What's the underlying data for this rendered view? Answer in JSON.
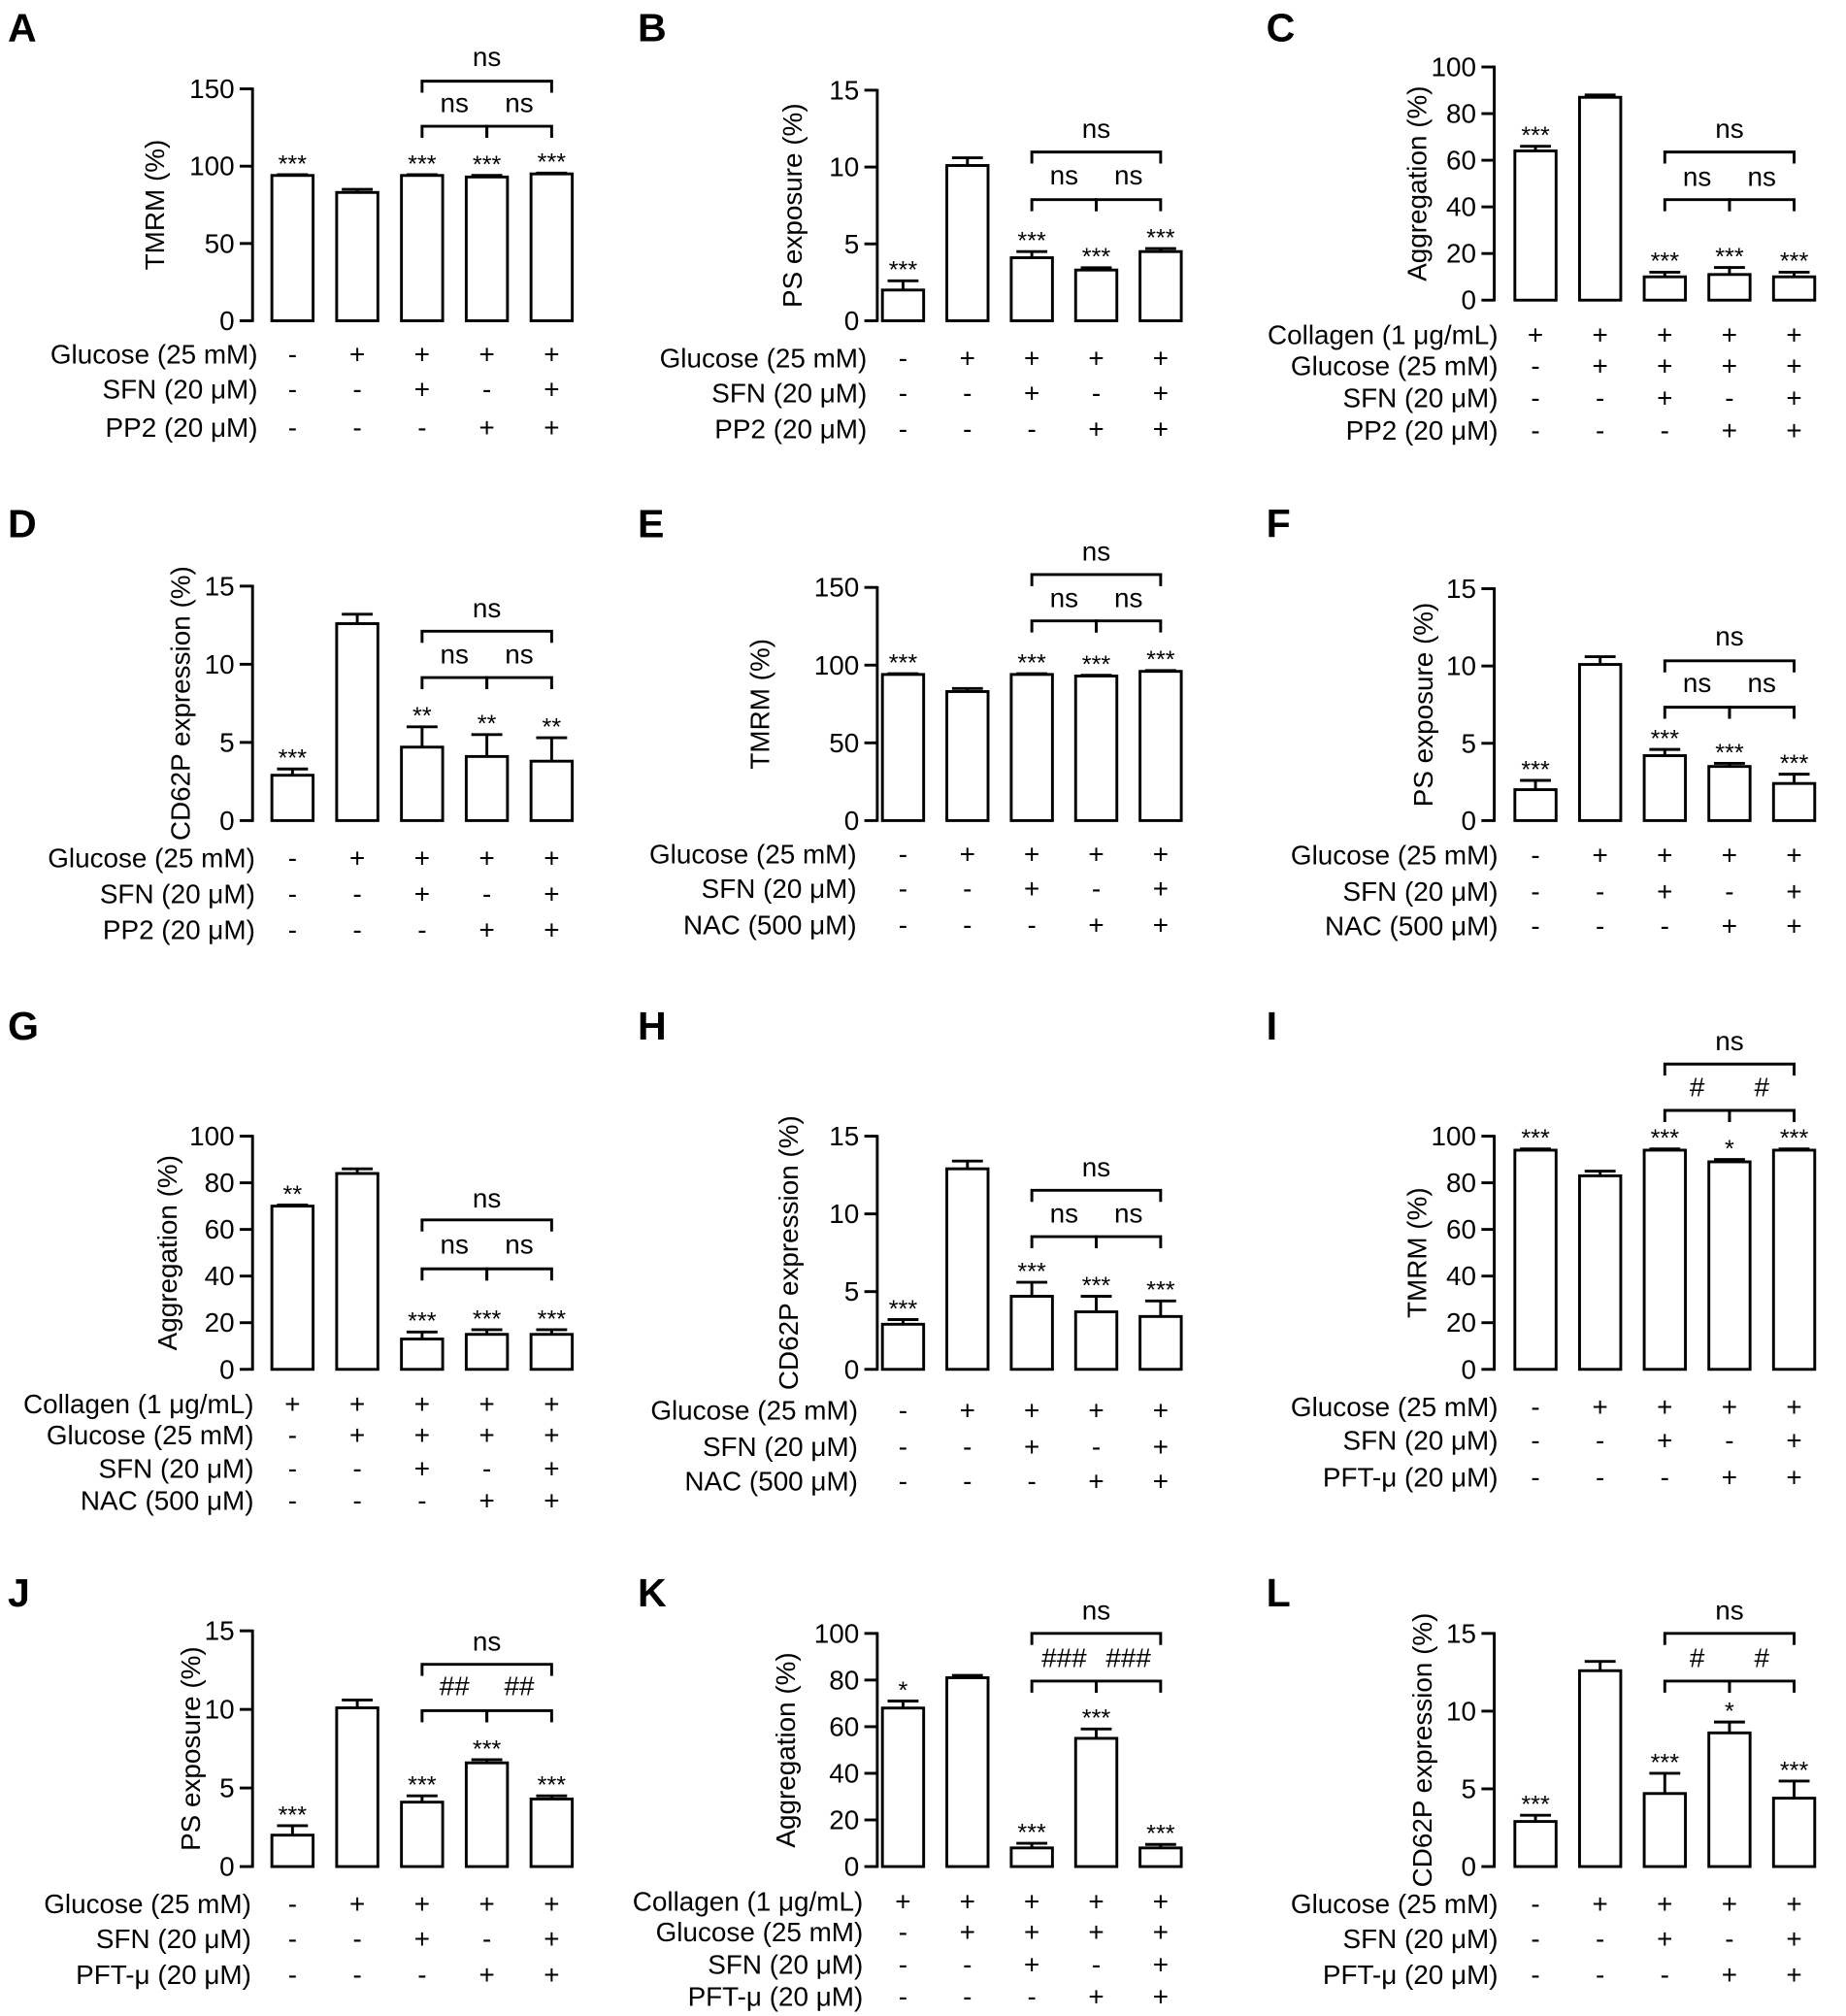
{
  "colors": {
    "bar_fill": "#ffffff",
    "stroke": "#000000"
  },
  "chart_data": [
    {
      "panel": "A",
      "type": "bar",
      "ylabel": "TMRM (%)",
      "ylim": [
        0,
        150
      ],
      "yticks": [
        0,
        50,
        100,
        150
      ],
      "values": [
        94,
        83,
        94,
        93,
        95
      ],
      "errors": [
        0.5,
        2,
        0.5,
        1,
        0.5
      ],
      "significance": [
        "***",
        null,
        "***",
        "***",
        "***"
      ],
      "comparisons": [
        {
          "groups": [
            2,
            3
          ],
          "label": "ns"
        },
        {
          "groups": [
            3,
            4
          ],
          "label": "ns"
        },
        {
          "groups": [
            2,
            4
          ],
          "label": "ns"
        }
      ],
      "conditions": [
        {
          "label": "Glucose (25 mM)",
          "signs": [
            "-",
            "+",
            "+",
            "+",
            "+"
          ]
        },
        {
          "label": "SFN (20 μM)",
          "signs": [
            "-",
            "-",
            "+",
            "-",
            "+"
          ]
        },
        {
          "label": "PP2 (20 μM)",
          "signs": [
            "-",
            "-",
            "-",
            "+",
            "+"
          ]
        }
      ]
    },
    {
      "panel": "B",
      "type": "bar",
      "ylabel": "PS exposure (%)",
      "ylim": [
        0,
        15
      ],
      "yticks": [
        0,
        5,
        10,
        15
      ],
      "values": [
        2.0,
        10.1,
        4.1,
        3.3,
        4.5
      ],
      "errors": [
        0.6,
        0.5,
        0.4,
        0.15,
        0.2
      ],
      "significance": [
        "***",
        null,
        "***",
        "***",
        "***"
      ],
      "comparisons": [
        {
          "groups": [
            2,
            3
          ],
          "label": "ns"
        },
        {
          "groups": [
            3,
            4
          ],
          "label": "ns"
        },
        {
          "groups": [
            2,
            4
          ],
          "label": "ns"
        }
      ],
      "conditions": [
        {
          "label": "Glucose (25 mM)",
          "signs": [
            "-",
            "+",
            "+",
            "+",
            "+"
          ]
        },
        {
          "label": "SFN (20 μM)",
          "signs": [
            "-",
            "-",
            "+",
            "-",
            "+"
          ]
        },
        {
          "label": "PP2 (20 μM)",
          "signs": [
            "-",
            "-",
            "-",
            "+",
            "+"
          ]
        }
      ]
    },
    {
      "panel": "C",
      "type": "bar",
      "ylabel": "Aggregation (%)",
      "ylim": [
        0,
        100
      ],
      "yticks": [
        0,
        20,
        40,
        60,
        80,
        100
      ],
      "values": [
        64,
        87,
        10,
        11,
        10
      ],
      "errors": [
        2,
        1,
        2,
        3,
        2
      ],
      "significance": [
        "***",
        null,
        "***",
        "***",
        "***"
      ],
      "comparisons": [
        {
          "groups": [
            2,
            3
          ],
          "label": "ns"
        },
        {
          "groups": [
            3,
            4
          ],
          "label": "ns"
        },
        {
          "groups": [
            2,
            4
          ],
          "label": "ns"
        }
      ],
      "conditions": [
        {
          "label": "Collagen (1 μg/mL)",
          "signs": [
            "+",
            "+",
            "+",
            "+",
            "+"
          ]
        },
        {
          "label": "Glucose (25 mM)",
          "signs": [
            "-",
            "+",
            "+",
            "+",
            "+"
          ]
        },
        {
          "label": "SFN (20 μM)",
          "signs": [
            "-",
            "-",
            "+",
            "-",
            "+"
          ]
        },
        {
          "label": "PP2 (20 μM)",
          "signs": [
            "-",
            "-",
            "-",
            "+",
            "+"
          ]
        }
      ]
    },
    {
      "panel": "D",
      "type": "bar",
      "ylabel": "CD62P expression (%)",
      "ylim": [
        0,
        15
      ],
      "yticks": [
        0,
        5,
        10,
        15
      ],
      "values": [
        2.9,
        12.6,
        4.7,
        4.1,
        3.8
      ],
      "errors": [
        0.4,
        0.6,
        1.3,
        1.4,
        1.5
      ],
      "significance": [
        "***",
        null,
        "**",
        "**",
        "**"
      ],
      "comparisons": [
        {
          "groups": [
            2,
            3
          ],
          "label": "ns"
        },
        {
          "groups": [
            3,
            4
          ],
          "label": "ns"
        },
        {
          "groups": [
            2,
            4
          ],
          "label": "ns"
        }
      ],
      "conditions": [
        {
          "label": "Glucose (25 mM)",
          "signs": [
            "-",
            "+",
            "+",
            "+",
            "+"
          ]
        },
        {
          "label": "SFN (20 μM)",
          "signs": [
            "-",
            "-",
            "+",
            "-",
            "+"
          ]
        },
        {
          "label": "PP2 (20 μM)",
          "signs": [
            "-",
            "-",
            "-",
            "+",
            "+"
          ]
        }
      ]
    },
    {
      "panel": "E",
      "type": "bar",
      "ylabel": "TMRM (%)",
      "ylim": [
        0,
        150
      ],
      "yticks": [
        0,
        50,
        100,
        150
      ],
      "values": [
        94,
        83,
        94,
        93,
        96
      ],
      "errors": [
        0.5,
        2,
        0.5,
        0.5,
        0.5
      ],
      "significance": [
        "***",
        null,
        "***",
        "***",
        "***"
      ],
      "comparisons": [
        {
          "groups": [
            2,
            3
          ],
          "label": "ns"
        },
        {
          "groups": [
            3,
            4
          ],
          "label": "ns"
        },
        {
          "groups": [
            2,
            4
          ],
          "label": "ns"
        }
      ],
      "conditions": [
        {
          "label": "Glucose (25 mM)",
          "signs": [
            "-",
            "+",
            "+",
            "+",
            "+"
          ]
        },
        {
          "label": "SFN (20 μM)",
          "signs": [
            "-",
            "-",
            "+",
            "-",
            "+"
          ]
        },
        {
          "label": "NAC (500 μM)",
          "signs": [
            "-",
            "-",
            "-",
            "+",
            "+"
          ]
        }
      ]
    },
    {
      "panel": "F",
      "type": "bar",
      "ylabel": "PS exposure (%)",
      "ylim": [
        0,
        15
      ],
      "yticks": [
        0,
        5,
        10,
        15
      ],
      "values": [
        2.0,
        10.1,
        4.2,
        3.5,
        2.4
      ],
      "errors": [
        0.6,
        0.5,
        0.4,
        0.2,
        0.6
      ],
      "significance": [
        "***",
        null,
        "***",
        "***",
        "***"
      ],
      "comparisons": [
        {
          "groups": [
            2,
            3
          ],
          "label": "ns"
        },
        {
          "groups": [
            3,
            4
          ],
          "label": "ns"
        },
        {
          "groups": [
            2,
            4
          ],
          "label": "ns"
        }
      ],
      "conditions": [
        {
          "label": "Glucose (25 mM)",
          "signs": [
            "-",
            "+",
            "+",
            "+",
            "+"
          ]
        },
        {
          "label": "SFN (20 μM)",
          "signs": [
            "-",
            "-",
            "+",
            "-",
            "+"
          ]
        },
        {
          "label": "NAC (500 μM)",
          "signs": [
            "-",
            "-",
            "-",
            "+",
            "+"
          ]
        }
      ]
    },
    {
      "panel": "G",
      "type": "bar",
      "ylabel": "Aggregation (%)",
      "ylim": [
        0,
        100
      ],
      "yticks": [
        0,
        20,
        40,
        60,
        80,
        100
      ],
      "values": [
        70,
        84,
        13,
        15,
        15
      ],
      "errors": [
        0.5,
        2,
        3,
        2,
        2
      ],
      "significance": [
        "**",
        null,
        "***",
        "***",
        "***"
      ],
      "comparisons": [
        {
          "groups": [
            2,
            3
          ],
          "label": "ns"
        },
        {
          "groups": [
            3,
            4
          ],
          "label": "ns"
        },
        {
          "groups": [
            2,
            4
          ],
          "label": "ns"
        }
      ],
      "conditions": [
        {
          "label": "Collagen (1 μg/mL)",
          "signs": [
            "+",
            "+",
            "+",
            "+",
            "+"
          ]
        },
        {
          "label": "Glucose (25 mM)",
          "signs": [
            "-",
            "+",
            "+",
            "+",
            "+"
          ]
        },
        {
          "label": "SFN (20 μM)",
          "signs": [
            "-",
            "-",
            "+",
            "-",
            "+"
          ]
        },
        {
          "label": "NAC (500 μM)",
          "signs": [
            "-",
            "-",
            "-",
            "+",
            "+"
          ]
        }
      ]
    },
    {
      "panel": "H",
      "type": "bar",
      "ylabel": "CD62P expression (%)",
      "ylim": [
        0,
        15
      ],
      "yticks": [
        0,
        5,
        10,
        15
      ],
      "values": [
        2.9,
        12.9,
        4.7,
        3.7,
        3.4
      ],
      "errors": [
        0.3,
        0.5,
        0.9,
        1.0,
        1.0
      ],
      "significance": [
        "***",
        null,
        "***",
        "***",
        "***"
      ],
      "comparisons": [
        {
          "groups": [
            2,
            3
          ],
          "label": "ns"
        },
        {
          "groups": [
            3,
            4
          ],
          "label": "ns"
        },
        {
          "groups": [
            2,
            4
          ],
          "label": "ns"
        }
      ],
      "conditions": [
        {
          "label": "Glucose (25 mM)",
          "signs": [
            "-",
            "+",
            "+",
            "+",
            "+"
          ]
        },
        {
          "label": "SFN (20 μM)",
          "signs": [
            "-",
            "-",
            "+",
            "-",
            "+"
          ]
        },
        {
          "label": "NAC (500 μM)",
          "signs": [
            "-",
            "-",
            "-",
            "+",
            "+"
          ]
        }
      ]
    },
    {
      "panel": "I",
      "type": "bar",
      "ylabel": "TMRM (%)",
      "ylim": [
        0,
        100
      ],
      "yticks": [
        0,
        20,
        40,
        60,
        80,
        100
      ],
      "values": [
        94,
        83,
        94,
        89,
        94
      ],
      "errors": [
        0.5,
        2,
        0.5,
        1,
        0.5
      ],
      "significance": [
        "***",
        null,
        "***",
        "*",
        "***"
      ],
      "comparisons": [
        {
          "groups": [
            2,
            3
          ],
          "label": "#"
        },
        {
          "groups": [
            3,
            4
          ],
          "label": "#"
        },
        {
          "groups": [
            2,
            4
          ],
          "label": "ns"
        }
      ],
      "conditions": [
        {
          "label": "Glucose (25 mM)",
          "signs": [
            "-",
            "+",
            "+",
            "+",
            "+"
          ]
        },
        {
          "label": "SFN (20 μM)",
          "signs": [
            "-",
            "-",
            "+",
            "-",
            "+"
          ]
        },
        {
          "label": "PFT-μ (20 μM)",
          "signs": [
            "-",
            "-",
            "-",
            "+",
            "+"
          ]
        }
      ]
    },
    {
      "panel": "J",
      "type": "bar",
      "ylabel": "PS exposure (%)",
      "ylim": [
        0,
        15
      ],
      "yticks": [
        0,
        5,
        10,
        15
      ],
      "values": [
        2.0,
        10.1,
        4.1,
        6.6,
        4.3
      ],
      "errors": [
        0.6,
        0.5,
        0.4,
        0.2,
        0.2
      ],
      "significance": [
        "***",
        null,
        "***",
        "***",
        "***"
      ],
      "comparisons": [
        {
          "groups": [
            2,
            3
          ],
          "label": "##"
        },
        {
          "groups": [
            3,
            4
          ],
          "label": "##"
        },
        {
          "groups": [
            2,
            4
          ],
          "label": "ns"
        }
      ],
      "conditions": [
        {
          "label": "Glucose (25 mM)",
          "signs": [
            "-",
            "+",
            "+",
            "+",
            "+"
          ]
        },
        {
          "label": "SFN (20 μM)",
          "signs": [
            "-",
            "-",
            "+",
            "-",
            "+"
          ]
        },
        {
          "label": "PFT-μ (20 μM)",
          "signs": [
            "-",
            "-",
            "-",
            "+",
            "+"
          ]
        }
      ]
    },
    {
      "panel": "K",
      "type": "bar",
      "ylabel": "Aggregation (%)",
      "ylim": [
        0,
        100
      ],
      "yticks": [
        0,
        20,
        40,
        60,
        80,
        100
      ],
      "values": [
        68,
        81,
        8,
        55,
        8
      ],
      "errors": [
        3,
        1,
        2,
        4,
        1.5
      ],
      "significance": [
        "*",
        null,
        "***",
        "***",
        "***"
      ],
      "comparisons": [
        {
          "groups": [
            2,
            3
          ],
          "label": "###"
        },
        {
          "groups": [
            3,
            4
          ],
          "label": "###"
        },
        {
          "groups": [
            2,
            4
          ],
          "label": "ns"
        }
      ],
      "conditions": [
        {
          "label": "Collagen (1 μg/mL)",
          "signs": [
            "+",
            "+",
            "+",
            "+",
            "+"
          ]
        },
        {
          "label": "Glucose (25 mM)",
          "signs": [
            "-",
            "+",
            "+",
            "+",
            "+"
          ]
        },
        {
          "label": "SFN (20 μM)",
          "signs": [
            "-",
            "-",
            "+",
            "-",
            "+"
          ]
        },
        {
          "label": "PFT-μ (20 μM)",
          "signs": [
            "-",
            "-",
            "-",
            "+",
            "+"
          ]
        }
      ]
    },
    {
      "panel": "L",
      "type": "bar",
      "ylabel": "CD62P expression (%)",
      "ylim": [
        0,
        15
      ],
      "yticks": [
        0,
        5,
        10,
        15
      ],
      "values": [
        2.9,
        12.6,
        4.7,
        8.6,
        4.4
      ],
      "errors": [
        0.4,
        0.6,
        1.3,
        0.7,
        1.1
      ],
      "significance": [
        "***",
        null,
        "***",
        "*",
        "***"
      ],
      "comparisons": [
        {
          "groups": [
            2,
            3
          ],
          "label": "#"
        },
        {
          "groups": [
            3,
            4
          ],
          "label": "#"
        },
        {
          "groups": [
            2,
            4
          ],
          "label": "ns"
        }
      ],
      "conditions": [
        {
          "label": "Glucose (25 mM)",
          "signs": [
            "-",
            "+",
            "+",
            "+",
            "+"
          ]
        },
        {
          "label": "SFN (20 μM)",
          "signs": [
            "-",
            "-",
            "+",
            "-",
            "+"
          ]
        },
        {
          "label": "PFT-μ (20 μM)",
          "signs": [
            "-",
            "-",
            "-",
            "+",
            "+"
          ]
        }
      ]
    }
  ]
}
